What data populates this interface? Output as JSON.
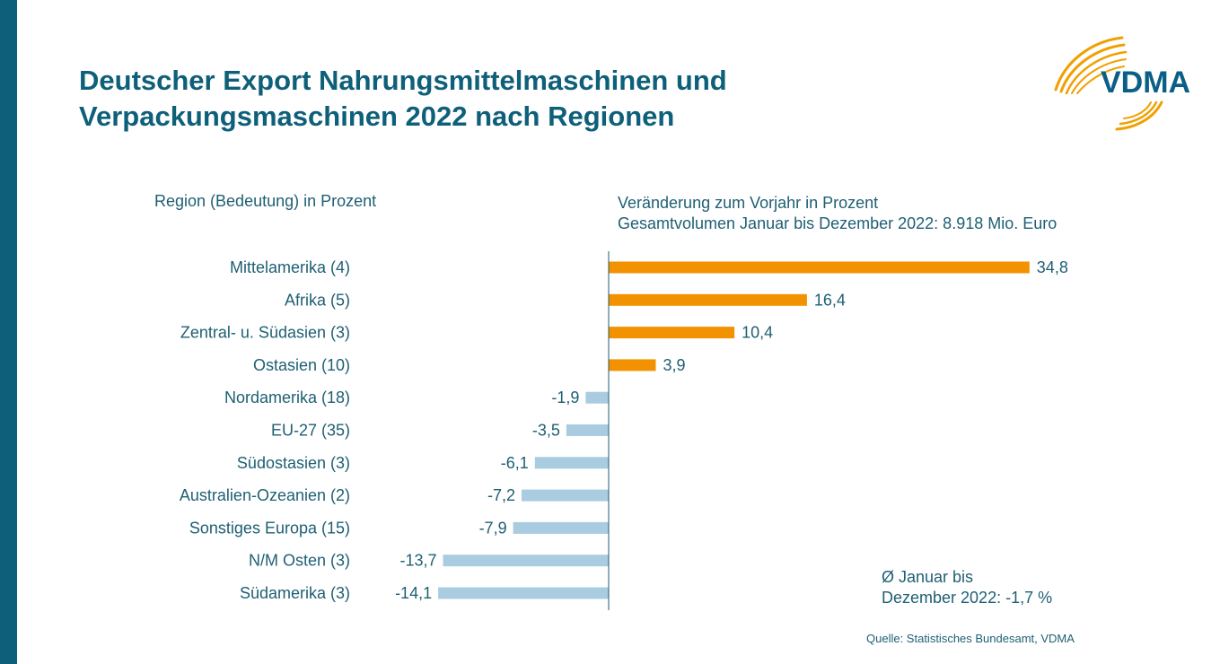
{
  "title": {
    "line1": "Deutscher Export Nahrungsmittelmaschinen und",
    "line2": "Verpackungsmaschinen 2022 nach Regionen"
  },
  "logo": {
    "text": "VDMA"
  },
  "headers": {
    "left": "Region (Bedeutung) in Prozent",
    "right_line1": "Veränderung zum Vorjahr in Prozent",
    "right_line2": "Gesamtvolumen Januar bis Dezember 2022: 8.918 Mio. Euro"
  },
  "chart_data": {
    "type": "bar",
    "orientation": "horizontal",
    "categories": [
      "Mittelamerika (4)",
      "Afrika (5)",
      "Zentral- u. Südasien (3)",
      "Ostasien (10)",
      "Nordamerika (18)",
      "EU-27 (35)",
      "Südostasien (3)",
      "Australien-Ozeanien (2)",
      "Sonstiges Europa (15)",
      "N/M Osten (3)",
      "Südamerika (3)"
    ],
    "values": [
      34.8,
      16.4,
      10.4,
      3.9,
      -1.9,
      -3.5,
      -6.1,
      -7.2,
      -7.9,
      -13.7,
      -14.1
    ],
    "value_labels": [
      "34,8",
      "16,4",
      "10,4",
      "3,9",
      "-1,9",
      "-3,5",
      "-6,1",
      "-7,2",
      "-7,9",
      "-13,7",
      "-14,1"
    ],
    "colors": {
      "positive": "#f39200",
      "negative": "#a9cce0",
      "axis": "#1e5f73"
    },
    "grid": false,
    "legend": "none"
  },
  "average": {
    "line1": "Ø Januar bis",
    "line2": "Dezember 2022: -1,7 %"
  },
  "source": "Quelle: Statistisches Bundesamt, VDMA"
}
